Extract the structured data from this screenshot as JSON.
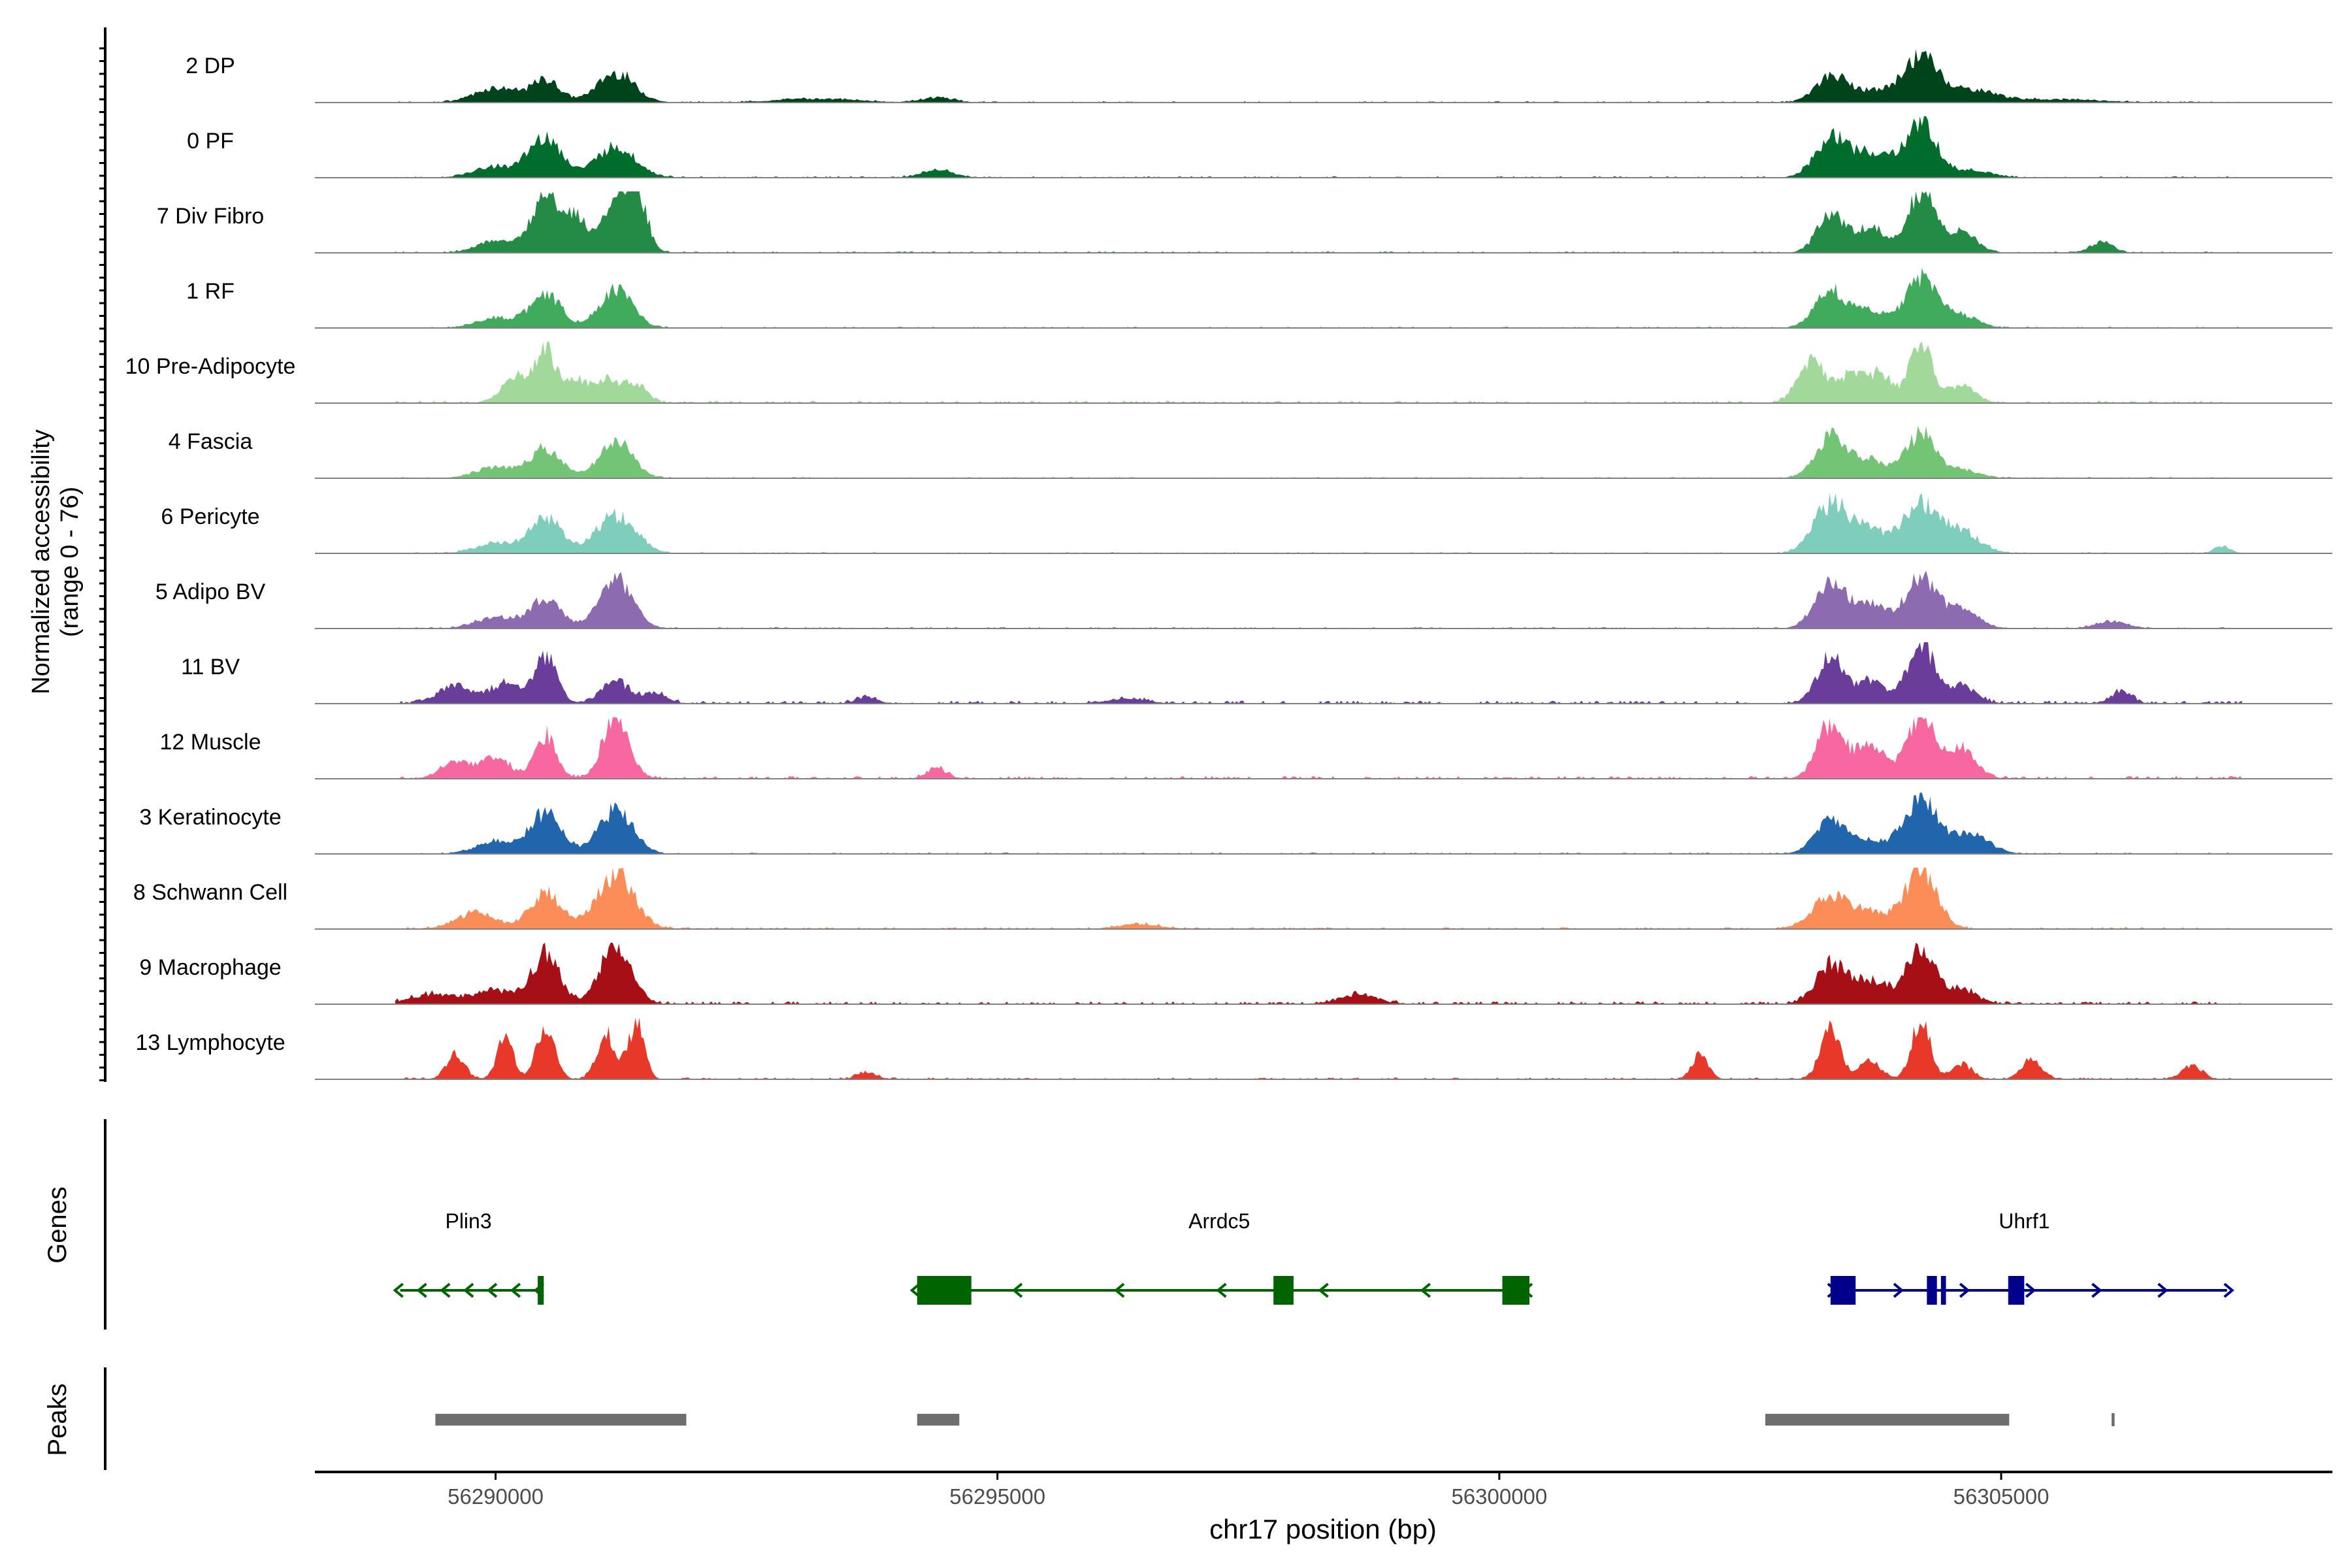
{
  "chart_data": {
    "type": "area",
    "title": "",
    "xlabel": "chr17 position (bp)",
    "ylabel": "Normalized accessibility",
    "ylabel_range": "(range 0 - 76)",
    "ylim": [
      0,
      76
    ],
    "xlim": [
      56288200,
      56308300
    ],
    "x_ticks": [
      56290000,
      56295000,
      56300000,
      56305000
    ],
    "x_tick_labels": [
      "56290000",
      "56295000",
      "56300000",
      "56305000"
    ],
    "genes_label": "Genes",
    "peaks_label": "Peaks",
    "tracks": [
      {
        "name": "2 DP",
        "color": "#00441b",
        "noise": 0.022,
        "spread": 0.85,
        "peaks": [
          [
            56290000,
            0.24,
            160
          ],
          [
            56290500,
            0.36,
            110
          ],
          [
            56291200,
            0.48,
            140
          ],
          [
            56293200,
            0.06,
            300
          ],
          [
            56294400,
            0.08,
            120
          ],
          [
            56303300,
            0.38,
            120
          ],
          [
            56303700,
            0.18,
            200
          ],
          [
            56304200,
            0.7,
            130
          ],
          [
            56304700,
            0.2,
            200
          ],
          [
            56305600,
            0.05,
            300
          ]
        ]
      },
      {
        "name": "0 PF",
        "color": "#006d2c",
        "noise": 0.025,
        "spread": 0.85,
        "peaks": [
          [
            56290000,
            0.18,
            160
          ],
          [
            56290500,
            0.66,
            120
          ],
          [
            56291200,
            0.5,
            150
          ],
          [
            56294400,
            0.12,
            120
          ],
          [
            56303300,
            0.62,
            120
          ],
          [
            56303700,
            0.38,
            150
          ],
          [
            56304200,
            0.86,
            120
          ],
          [
            56304700,
            0.12,
            150
          ]
        ]
      },
      {
        "name": "7 Div Fibro",
        "color": "#238b45",
        "noise": 0.025,
        "spread": 0.7,
        "peaks": [
          [
            56290000,
            0.2,
            150
          ],
          [
            56290500,
            1.0,
            110
          ],
          [
            56290800,
            0.55,
            100
          ],
          [
            56291200,
            0.82,
            100
          ],
          [
            56291400,
            0.9,
            90
          ],
          [
            56303300,
            0.62,
            110
          ],
          [
            56303700,
            0.42,
            120
          ],
          [
            56304200,
            1.0,
            110
          ],
          [
            56304600,
            0.35,
            120
          ],
          [
            56306000,
            0.18,
            90
          ]
        ]
      },
      {
        "name": "1 RF",
        "color": "#41ab5d",
        "noise": 0.022,
        "spread": 0.8,
        "peaks": [
          [
            56290000,
            0.16,
            150
          ],
          [
            56290500,
            0.55,
            120
          ],
          [
            56291200,
            0.6,
            130
          ],
          [
            56303300,
            0.6,
            120
          ],
          [
            56303700,
            0.26,
            130
          ],
          [
            56304200,
            0.8,
            120
          ],
          [
            56304600,
            0.2,
            130
          ]
        ]
      },
      {
        "name": "10 Pre-Adipocyte",
        "color": "#a1d99b",
        "noise": 0.04,
        "spread": 0.7,
        "peaks": [
          [
            56290200,
            0.45,
            110
          ],
          [
            56290500,
            0.9,
            80
          ],
          [
            56290800,
            0.35,
            90
          ],
          [
            56291100,
            0.35,
            110
          ],
          [
            56291400,
            0.3,
            90
          ],
          [
            56303100,
            0.7,
            110
          ],
          [
            56303500,
            0.42,
            110
          ],
          [
            56303800,
            0.45,
            100
          ],
          [
            56304200,
            1.0,
            90
          ],
          [
            56304600,
            0.3,
            110
          ]
        ]
      },
      {
        "name": "4 Fascia",
        "color": "#74c476",
        "noise": 0.022,
        "spread": 0.8,
        "peaks": [
          [
            56290000,
            0.18,
            150
          ],
          [
            56290500,
            0.48,
            120
          ],
          [
            56291200,
            0.6,
            130
          ],
          [
            56303300,
            0.65,
            120
          ],
          [
            56303700,
            0.28,
            140
          ],
          [
            56304200,
            0.72,
            110
          ],
          [
            56304600,
            0.14,
            130
          ]
        ]
      },
      {
        "name": "6 Pericyte",
        "color": "#7fcdbb",
        "noise": 0.022,
        "spread": 0.85,
        "peaks": [
          [
            56290000,
            0.16,
            150
          ],
          [
            56290500,
            0.58,
            120
          ],
          [
            56291200,
            0.6,
            150
          ],
          [
            56303300,
            0.78,
            130
          ],
          [
            56303700,
            0.36,
            140
          ],
          [
            56304200,
            0.78,
            130
          ],
          [
            56304600,
            0.36,
            140
          ],
          [
            56307200,
            0.12,
            60
          ]
        ]
      },
      {
        "name": "5 Adipo BV",
        "color": "#8c6bb1",
        "noise": 0.025,
        "spread": 0.8,
        "peaks": [
          [
            56290000,
            0.18,
            150
          ],
          [
            56290500,
            0.5,
            120
          ],
          [
            56291200,
            0.8,
            130
          ],
          [
            56303300,
            0.7,
            120
          ],
          [
            56303700,
            0.38,
            130
          ],
          [
            56304200,
            0.82,
            120
          ],
          [
            56304600,
            0.3,
            130
          ],
          [
            56306100,
            0.12,
            120
          ]
        ]
      },
      {
        "name": "11 BV",
        "color": "#6a3d9a",
        "noise": 0.05,
        "spread": 0.7,
        "peaks": [
          [
            56289600,
            0.3,
            140
          ],
          [
            56290100,
            0.32,
            120
          ],
          [
            56290500,
            0.78,
            90
          ],
          [
            56291200,
            0.35,
            120
          ],
          [
            56291600,
            0.18,
            90
          ],
          [
            56293700,
            0.1,
            80
          ],
          [
            56296300,
            0.08,
            150
          ],
          [
            56303300,
            0.75,
            110
          ],
          [
            56303700,
            0.34,
            120
          ],
          [
            56304200,
            0.96,
            110
          ],
          [
            56304600,
            0.28,
            120
          ],
          [
            56306200,
            0.2,
            80
          ]
        ]
      },
      {
        "name": "12 Muscle",
        "color": "#f768a1",
        "noise": 0.045,
        "spread": 0.7,
        "peaks": [
          [
            56289600,
            0.25,
            120
          ],
          [
            56290000,
            0.3,
            130
          ],
          [
            56290500,
            0.68,
            90
          ],
          [
            56291200,
            0.95,
            110
          ],
          [
            56294400,
            0.16,
            80
          ],
          [
            56303300,
            0.88,
            110
          ],
          [
            56303700,
            0.55,
            120
          ],
          [
            56304200,
            1.0,
            110
          ],
          [
            56304600,
            0.48,
            120
          ]
        ]
      },
      {
        "name": "3 Keratinocyte",
        "color": "#2166ac",
        "noise": 0.022,
        "spread": 0.85,
        "peaks": [
          [
            56290000,
            0.2,
            150
          ],
          [
            56290500,
            0.66,
            120
          ],
          [
            56291200,
            0.7,
            130
          ],
          [
            56303300,
            0.5,
            120
          ],
          [
            56303700,
            0.18,
            140
          ],
          [
            56304200,
            0.86,
            130
          ],
          [
            56304700,
            0.3,
            140
          ]
        ]
      },
      {
        "name": "8 Schwann Cell",
        "color": "#fc8d59",
        "noise": 0.03,
        "spread": 0.85,
        "peaks": [
          [
            56289800,
            0.26,
            150
          ],
          [
            56290500,
            0.58,
            120
          ],
          [
            56291200,
            0.88,
            140
          ],
          [
            56296400,
            0.08,
            150
          ],
          [
            56303300,
            0.5,
            140
          ],
          [
            56303700,
            0.25,
            140
          ],
          [
            56304200,
            0.96,
            120
          ]
        ]
      },
      {
        "name": "9 Macrophage",
        "color": "#a50f15",
        "noise": 0.045,
        "spread": 0.75,
        "peaks": [
          [
            56289400,
            0.15,
            200
          ],
          [
            56290000,
            0.22,
            150
          ],
          [
            56290500,
            0.82,
            110
          ],
          [
            56291200,
            1.0,
            120
          ],
          [
            56298600,
            0.16,
            150
          ],
          [
            56303300,
            0.62,
            120
          ],
          [
            56303700,
            0.38,
            140
          ],
          [
            56304200,
            0.92,
            110
          ],
          [
            56304600,
            0.25,
            120
          ]
        ]
      },
      {
        "name": "13 Lymphocyte",
        "color": "#e7382a",
        "noise": 0.03,
        "spread": 0.6,
        "peaks": [
          [
            56289600,
            0.4,
            80
          ],
          [
            56290100,
            0.7,
            70
          ],
          [
            56290500,
            0.86,
            80
          ],
          [
            56291100,
            0.75,
            80
          ],
          [
            56291400,
            0.9,
            70
          ],
          [
            56293700,
            0.12,
            80
          ],
          [
            56302000,
            0.42,
            70
          ],
          [
            56303300,
            0.78,
            90
          ],
          [
            56303700,
            0.3,
            90
          ],
          [
            56304200,
            1.0,
            80
          ],
          [
            56304600,
            0.25,
            90
          ],
          [
            56305300,
            0.3,
            90
          ],
          [
            56306900,
            0.22,
            90
          ]
        ]
      }
    ],
    "genes": [
      {
        "name": "Plin3",
        "strand": "-",
        "start": 56289050,
        "end": 56290450,
        "color": "#006400",
        "exons": [
          [
            56290420,
            56290480
          ]
        ],
        "label_x": 56289730
      },
      {
        "name": "Arrdc5",
        "strand": "-",
        "start": 56294200,
        "end": 56300300,
        "color": "#006400",
        "exons": [
          [
            56294200,
            56294740
          ],
          [
            56297750,
            56297950
          ],
          [
            56300030,
            56300300
          ]
        ],
        "label_x": 56297210
      },
      {
        "name": "Uhrf1",
        "strand": "+",
        "start": 56303300,
        "end": 56307250,
        "color": "#00008b",
        "exons": [
          [
            56303300,
            56303550
          ],
          [
            56304260,
            56304360
          ],
          [
            56304400,
            56304450
          ],
          [
            56305070,
            56305230
          ]
        ],
        "label_x": 56305230
      }
    ],
    "peaks": [
      [
        56289400,
        56291900
      ],
      [
        56294200,
        56294620
      ],
      [
        56302650,
        56305080
      ],
      [
        56306100,
        56306130
      ]
    ]
  }
}
